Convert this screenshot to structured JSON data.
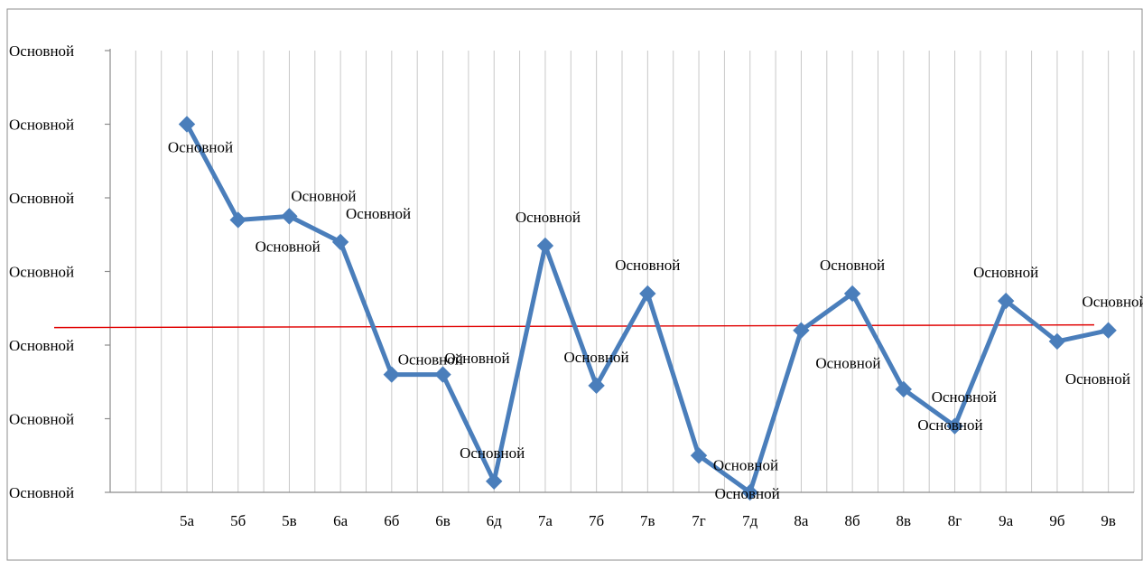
{
  "chart_data": {
    "type": "line",
    "categories": [
      "5а",
      "5б",
      "5в",
      "6а",
      "6б",
      "6в",
      "6д",
      "7а",
      "7б",
      "7в",
      "7г",
      "7д",
      "8а",
      "8б",
      "8в",
      "8г",
      "9а",
      "9б",
      "9в"
    ],
    "series": [
      {
        "values": [
          5.0,
          3.7,
          3.75,
          3.4,
          1.6,
          1.6,
          0.15,
          3.35,
          1.45,
          2.7,
          0.5,
          0.0,
          2.2,
          2.7,
          1.4,
          0.9,
          2.6,
          2.05,
          2.2
        ],
        "data_labels": [
          "Основной",
          "Основной",
          "Основной",
          "Основной",
          "Основной",
          "Основной",
          "Основной",
          "Основной",
          "Основной",
          "Основной",
          "Основной",
          "Основной",
          "Основной",
          "Основной",
          "Основной",
          "Основной",
          "Основной",
          "Основной",
          "Основной"
        ],
        "color": "#4a7ebb"
      }
    ],
    "y_tick_labels": [
      "Основной",
      "Основной",
      "Основной",
      "Основной",
      "Основной",
      "Основной",
      "Основной"
    ],
    "ylim": [
      0,
      6
    ],
    "reference_line": {
      "value": 2.25,
      "color": "#e00000"
    },
    "grid": "vertical",
    "legend": "none",
    "title": "",
    "xlabel": "",
    "ylabel": ""
  }
}
